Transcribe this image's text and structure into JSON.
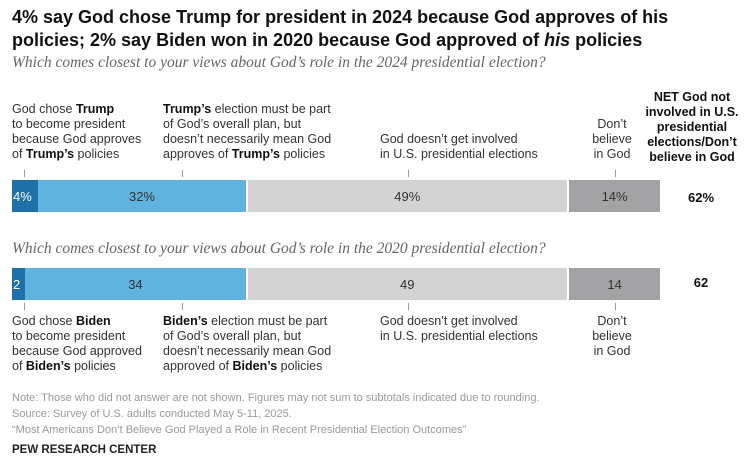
{
  "title": "4% say God chose Trump for president in 2024 because God approves of his policies; 2% say Biden won in 2020 because God approved of his policies",
  "title_parts": [
    {
      "text": "4% say God chose Trump for president in 2024 because God approves of his policies; 2% say Biden won in 2020 because God approved of ",
      "italic": false
    },
    {
      "text": "his",
      "italic": true
    },
    {
      "text": " policies",
      "italic": false
    }
  ],
  "chart_data": [
    {
      "type": "bar",
      "stacked": true,
      "orientation": "horizontal",
      "title": "Which comes closest to your views about God’s role in the 2024 presidential election?",
      "categories": [
        "God chose Trump to become president because God approves of Trump’s policies",
        "Trump’s election must be part of God’s overall plan, but doesn’t necessarily mean God approves of Trump’s policies",
        "God doesn’t get involved in U.S. presidential elections",
        "Don’t believe in God"
      ],
      "values": [
        4,
        32,
        49,
        14
      ],
      "data_labels": [
        "4%",
        "32%",
        "49%",
        "14%"
      ],
      "colors": [
        "#1f6fa8",
        "#5fb3de",
        "#d3d3d3",
        "#a3a3a5"
      ],
      "net_label": "NET God not involved in U.S. presidential elections/Don’t believe in God",
      "net_value": "62%",
      "labels": [
        [
          {
            "t": "God chose "
          },
          {
            "t": "Trump",
            "b": true
          },
          {
            "t": "\nto become president\nbecause God approves\nof "
          },
          {
            "t": "Trump’s",
            "b": true
          },
          {
            "t": " policies"
          }
        ],
        [
          {
            "t": "Trump’s",
            "b": true
          },
          {
            "t": " election must be part\nof God’s overall plan, but\ndoesn’t necessarily mean God\napproves of "
          },
          {
            "t": "Trump’s",
            "b": true
          },
          {
            "t": " policies"
          }
        ],
        [
          {
            "t": "God doesn’t get involved\nin U.S. presidential elections"
          }
        ],
        [
          {
            "t": "Don’t\nbelieve\nin God"
          }
        ]
      ]
    },
    {
      "type": "bar",
      "stacked": true,
      "orientation": "horizontal",
      "title": "Which comes closest to your views about God’s role in the 2020 presidential election?",
      "categories": [
        "God chose Biden to become president because God approved of Biden’s policies",
        "Biden’s election must be part of God’s overall plan, but doesn’t necessarily mean God approved of Biden’s policies",
        "God doesn’t get involved in U.S. presidential elections",
        "Don’t believe in God"
      ],
      "values": [
        2,
        34,
        49,
        14
      ],
      "data_labels": [
        "2",
        "34",
        "49",
        "14"
      ],
      "colors": [
        "#1f6fa8",
        "#5fb3de",
        "#d3d3d3",
        "#a3a3a5"
      ],
      "net_value": "62",
      "labels": [
        [
          {
            "t": "God chose "
          },
          {
            "t": "Biden",
            "b": true
          },
          {
            "t": "\nto become president\nbecause God approved\nof "
          },
          {
            "t": "Biden’s",
            "b": true
          },
          {
            "t": " policies"
          }
        ],
        [
          {
            "t": "Biden’s",
            "b": true
          },
          {
            "t": " election must be part\nof God’s overall plan, but\ndoesn’t necessarily mean God\napproved of "
          },
          {
            "t": "Biden’s",
            "b": true
          },
          {
            "t": " policies"
          }
        ],
        [
          {
            "t": "God doesn’t get involved\nin U.S. presidential elections"
          }
        ],
        [
          {
            "t": "Don’t\nbelieve\nin God"
          }
        ]
      ]
    }
  ],
  "notes": [
    "Note: Those who did not answer are not shown. Figures may not sum to subtotals indicated due to rounding.",
    "Source: Survey of U.S. adults conducted May 5-11, 2025.",
    "“Most Americans Don’t Believe God Played a Role in Recent Presidential Election Outcomes”"
  ],
  "source_brand": "PEW RESEARCH CENTER"
}
